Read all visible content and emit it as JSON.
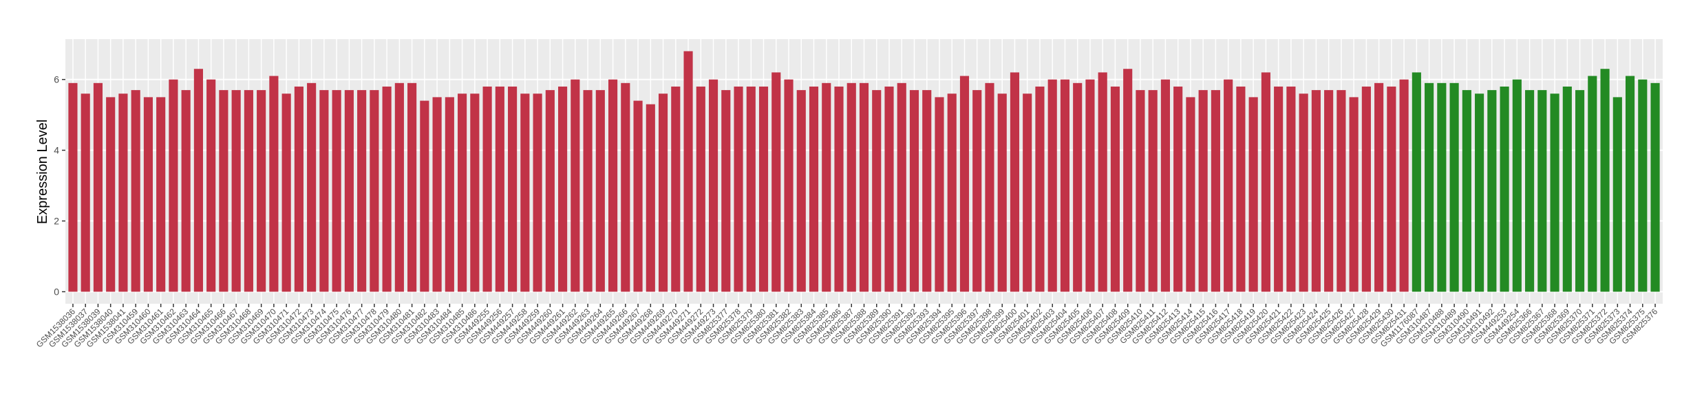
{
  "chart_data": {
    "type": "bar",
    "y_label": "Expression Level",
    "ylim": [
      -0.34,
      7.14
    ],
    "yticks": [
      0,
      2,
      4,
      6
    ],
    "grid": true,
    "background": "#ebebeb",
    "series": [
      {
        "color": "#c13347",
        "categories": [
          "GSM1538036",
          "GSM1538037",
          "GSM1538039",
          "GSM1538040",
          "GSM1538041",
          "GSM310459",
          "GSM310460",
          "GSM310461",
          "GSM310462",
          "GSM310463",
          "GSM310464",
          "GSM310465",
          "GSM310466",
          "GSM310467",
          "GSM310468",
          "GSM310469",
          "GSM310470",
          "GSM310471",
          "GSM310472",
          "GSM310473",
          "GSM310474",
          "GSM310475",
          "GSM310476",
          "GSM310477",
          "GSM310478",
          "GSM310479",
          "GSM310480",
          "GSM310481",
          "GSM310482",
          "GSM310483",
          "GSM310484",
          "GSM310485",
          "GSM310486",
          "GSM449255",
          "GSM449256",
          "GSM449257",
          "GSM449258",
          "GSM449259",
          "GSM449260",
          "GSM449261",
          "GSM449262",
          "GSM449263",
          "GSM449264",
          "GSM449265",
          "GSM449266",
          "GSM449267",
          "GSM449268",
          "GSM449269",
          "GSM449270",
          "GSM449271",
          "GSM449272",
          "GSM449273",
          "GSM825377",
          "GSM825378",
          "GSM825379",
          "GSM825380",
          "GSM825381",
          "GSM825382",
          "GSM825383",
          "GSM825384",
          "GSM825385",
          "GSM825386",
          "GSM825387",
          "GSM825388",
          "GSM825389",
          "GSM825390",
          "GSM825391",
          "GSM825392",
          "GSM825393",
          "GSM825394",
          "GSM825395",
          "GSM825396",
          "GSM825397",
          "GSM825398",
          "GSM825399",
          "GSM825400",
          "GSM825401",
          "GSM825402",
          "GSM825403",
          "GSM825404",
          "GSM825405",
          "GSM825406",
          "GSM825407",
          "GSM825408",
          "GSM825409",
          "GSM825410",
          "GSM825411",
          "GSM825412",
          "GSM825413",
          "GSM825414",
          "GSM825415",
          "GSM825416",
          "GSM825417",
          "GSM825418",
          "GSM825419",
          "GSM825420",
          "GSM825421",
          "GSM825422",
          "GSM825423",
          "GSM825424",
          "GSM825425",
          "GSM825426",
          "GSM825427",
          "GSM825428",
          "GSM825429",
          "GSM825430",
          "GSM825431"
        ],
        "values": [
          5.9,
          5.6,
          5.9,
          5.5,
          5.6,
          5.7,
          5.5,
          5.5,
          6.0,
          5.7,
          6.3,
          6.0,
          5.7,
          5.7,
          5.7,
          5.7,
          6.1,
          5.6,
          5.8,
          5.9,
          5.7,
          5.7,
          5.7,
          5.7,
          5.7,
          5.8,
          5.9,
          5.9,
          5.4,
          5.5,
          5.5,
          5.6,
          5.6,
          5.8,
          5.8,
          5.8,
          5.6,
          5.6,
          5.7,
          5.8,
          6.0,
          5.7,
          5.7,
          6.0,
          5.9,
          5.4,
          5.3,
          5.6,
          5.8,
          6.8,
          5.8,
          6.0,
          5.7,
          5.8,
          5.8,
          5.8,
          6.2,
          6.0,
          5.7,
          5.8,
          5.9,
          5.8,
          5.9,
          5.9,
          5.7,
          5.8,
          5.9,
          5.7,
          5.7,
          5.5,
          5.6,
          6.1,
          5.7,
          5.9,
          5.6,
          6.2,
          5.6,
          5.8,
          6.0,
          6.0,
          5.9,
          6.0,
          6.2,
          5.8,
          6.3,
          5.7,
          5.7,
          6.0,
          5.8,
          5.5,
          5.7,
          5.7,
          6.0,
          5.8,
          5.5,
          6.2,
          5.8,
          5.8,
          5.6,
          5.7,
          5.7,
          5.7,
          5.5,
          5.8,
          5.9,
          5.8,
          6.0
        ]
      },
      {
        "color": "#238a23",
        "categories": [
          "GSM1176087",
          "GSM310487",
          "GSM310488",
          "GSM310489",
          "GSM310490",
          "GSM310491",
          "GSM310492",
          "GSM449253",
          "GSM449254",
          "GSM825366",
          "GSM825367",
          "GSM825368",
          "GSM825369",
          "GSM825370",
          "GSM825371",
          "GSM825372",
          "GSM825373",
          "GSM825374",
          "GSM825375",
          "GSM825376"
        ],
        "values": [
          6.2,
          5.9,
          5.9,
          5.9,
          5.7,
          5.6,
          5.7,
          5.8,
          6.0,
          5.7,
          5.7,
          5.6,
          5.8,
          5.7,
          6.1,
          6.3,
          5.5,
          6.1,
          6.0,
          5.9
        ]
      }
    ]
  }
}
